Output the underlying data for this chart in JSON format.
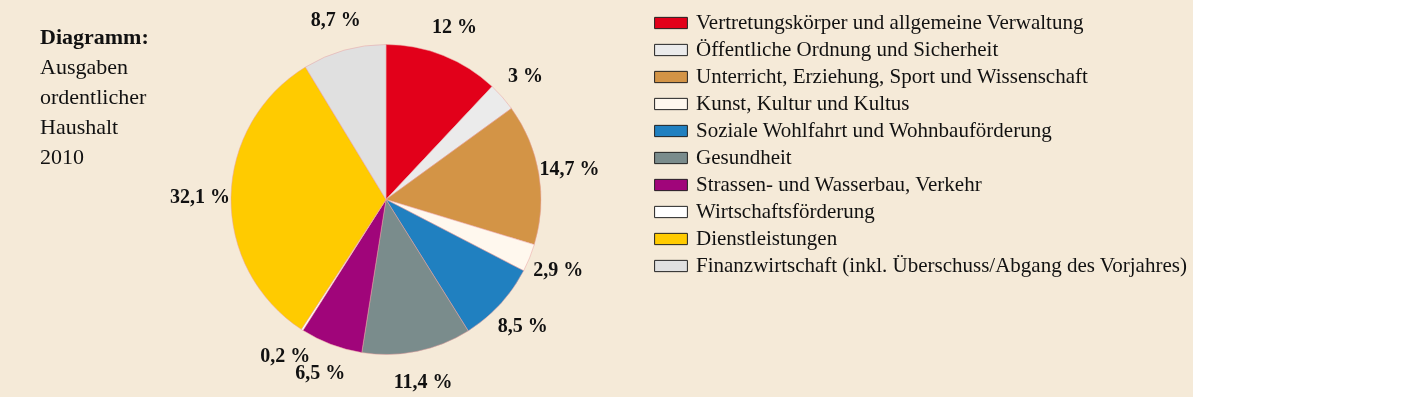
{
  "chart_data": {
    "type": "pie",
    "title": "Diagramm:",
    "subtitle": "Ausgaben ordentlicher Haushalt 2010",
    "categories": [
      "Vertretungskörper und allgemeine Verwaltung",
      "Öffentliche Ordnung und Sicherheit",
      "Unterricht, Erziehung, Sport und Wissenschaft",
      "Kunst, Kultur und Kultus",
      "Soziale Wohlfahrt und Wohnbauförderung",
      "Gesundheit",
      "Strassen- und Wasserbau, Verkehr",
      "Wirtschaftsförderung",
      "Dienstleistungen",
      "Finanzwirtschaft (inkl. Überschuss/Abgang des Vorjahres)"
    ],
    "values": [
      12,
      3,
      14.7,
      2.9,
      8.5,
      11.4,
      6.5,
      0.2,
      32.1,
      8.7
    ],
    "value_labels": [
      "12 %",
      "3 %",
      "14,7 %",
      "2,9 %",
      "8,5 %",
      "11,4 %",
      "6,5 %",
      "0,2 %",
      "32,1 %",
      "8,7 %"
    ],
    "colors": [
      "#e2001a",
      "#ebebeb",
      "#d39446",
      "#fff8ee",
      "#2080c0",
      "#7a8c8c",
      "#a0057a",
      "#ffffff",
      "#ffcb00",
      "#e0e0e0"
    ],
    "legend": "right"
  }
}
